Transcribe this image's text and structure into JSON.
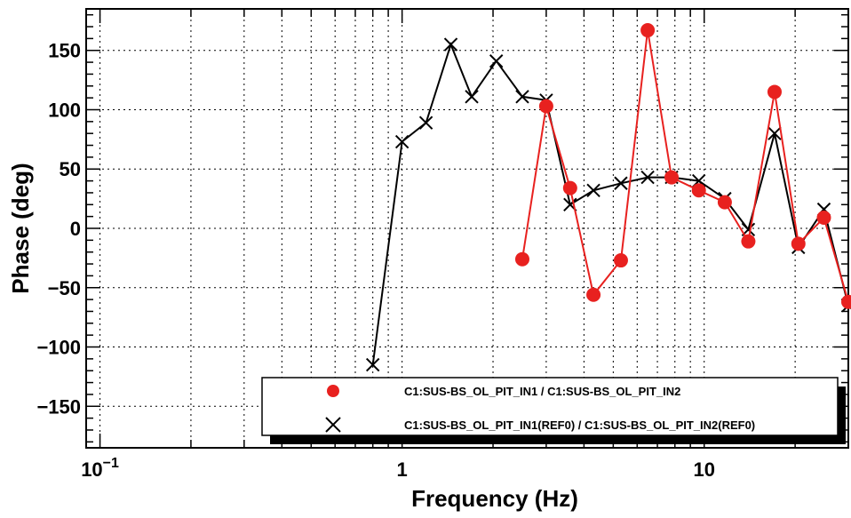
{
  "chart_data": {
    "type": "line",
    "xlabel": "Frequency (Hz)",
    "ylabel": "Phase (deg)",
    "xscale": "log",
    "xlim": [
      0.09,
      30
    ],
    "ylim": [
      -185,
      185
    ],
    "grid": true,
    "legend_position": "bottom-right",
    "x_tick_labels": [
      {
        "value": 0.1,
        "base": "10",
        "exp": "−1"
      },
      {
        "value": 1,
        "base": "1",
        "exp": ""
      },
      {
        "value": 10,
        "base": "10",
        "exp": ""
      }
    ],
    "y_ticks": [
      -150,
      -100,
      -50,
      0,
      50,
      100,
      150
    ],
    "y_tick_labels": [
      "−150",
      "−100",
      "−50",
      "0",
      "50",
      "100",
      "150"
    ],
    "series": [
      {
        "name": "C1:SUS-BS_OL_PIT_IN1 / C1:SUS-BS_OL_PIT_IN2",
        "color": "#e8211f",
        "marker": "circle",
        "x": [
          2.5,
          3.0,
          3.6,
          4.3,
          5.3,
          6.5,
          7.8,
          9.6,
          11.7,
          14.0,
          17.1,
          20.5,
          24.9,
          30.0
        ],
        "y": [
          -26,
          103,
          34,
          -56,
          -27,
          167,
          43,
          32,
          22,
          -11,
          115,
          -13,
          9,
          -62
        ]
      },
      {
        "name": "C1:SUS-BS_OL_PIT_IN1(REF0) / C1:SUS-BS_OL_PIT_IN2(REF0)",
        "color": "#000000",
        "marker": "x",
        "x": [
          0.8,
          1.0,
          1.2,
          1.45,
          1.7,
          2.05,
          2.5,
          3.0,
          3.6,
          4.3,
          5.3,
          6.5,
          7.8,
          9.6,
          11.7,
          14.0,
          17.1,
          20.5,
          24.9,
          30.0
        ],
        "y": [
          -115,
          73,
          89,
          155,
          111,
          141,
          111,
          108,
          20,
          32,
          38,
          43,
          43,
          40,
          25,
          -1,
          80,
          -16,
          16,
          -65
        ]
      }
    ]
  }
}
